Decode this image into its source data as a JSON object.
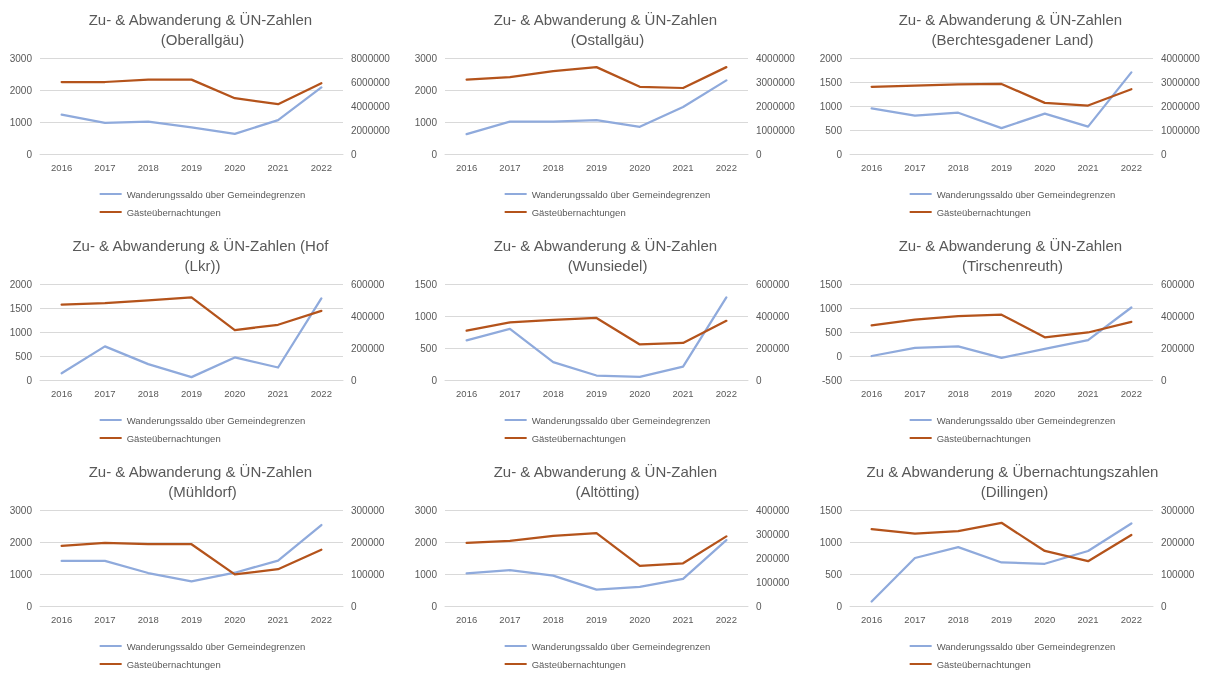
{
  "chart_data": [
    {
      "type": "line",
      "title": "Zu- & Abwanderung & ÜN-Zahlen (Oberallgäu)",
      "categories": [
        "2016",
        "2017",
        "2018",
        "2019",
        "2020",
        "2021",
        "2022"
      ],
      "ylim": [
        0,
        3000
      ],
      "yticks": [
        0,
        1000,
        2000,
        3000
      ],
      "y2lim": [
        0,
        8000000
      ],
      "y2ticks": [
        0,
        2000000,
        4000000,
        6000000,
        8000000
      ],
      "grid": "y",
      "legend": "bottom",
      "marker": "none",
      "line_style": "solid",
      "series": [
        {
          "name": "Wanderungssaldo über Gemeindegrenzen",
          "color": "#8faadc",
          "values": [
            1230,
            970,
            1010,
            830,
            630,
            1060,
            2080
          ]
        },
        {
          "name": "Gästeübernachtungen",
          "color": "#b4531b",
          "axis": "y2",
          "values": [
            6000000,
            6000000,
            6200000,
            6200000,
            4650000,
            4150000,
            5900000
          ]
        }
      ]
    },
    {
      "type": "line",
      "title": "Zu- & Abwanderung & ÜN-Zahlen (Ostallgäu)",
      "categories": [
        "2016",
        "2017",
        "2018",
        "2019",
        "2020",
        "2021",
        "2022"
      ],
      "ylim": [
        0,
        3000
      ],
      "yticks": [
        0,
        1000,
        2000,
        3000
      ],
      "y2lim": [
        0,
        4000000
      ],
      "y2ticks": [
        0,
        1000000,
        2000000,
        3000000,
        4000000
      ],
      "grid": "y",
      "legend": "bottom",
      "marker": "none",
      "line_style": "solid",
      "series": [
        {
          "name": "Wanderungssaldo über Gemeindegrenzen",
          "color": "#8faadc",
          "values": [
            620,
            1010,
            1010,
            1060,
            850,
            1470,
            2300
          ]
        },
        {
          "name": "Gästeübernachtungen",
          "color": "#b4531b",
          "axis": "y2",
          "values": [
            3100000,
            3200000,
            3450000,
            3620000,
            2800000,
            2750000,
            3620000
          ]
        }
      ]
    },
    {
      "type": "line",
      "title": "Zu- & Abwanderung & ÜN-Zahlen (Berchtesgadener Land)",
      "categories": [
        "2016",
        "2017",
        "2018",
        "2019",
        "2020",
        "2021",
        "2022"
      ],
      "ylim": [
        0,
        2000
      ],
      "yticks": [
        0,
        500,
        1000,
        1500,
        2000
      ],
      "y2lim": [
        0,
        4000000
      ],
      "y2ticks": [
        0,
        1000000,
        2000000,
        3000000,
        4000000
      ],
      "grid": "y",
      "legend": "bottom",
      "marker": "none",
      "line_style": "solid",
      "series": [
        {
          "name": "Wanderungssaldo über Gemeindegrenzen",
          "color": "#8faadc",
          "values": [
            950,
            800,
            860,
            540,
            840,
            570,
            1700
          ]
        },
        {
          "name": "Gästeübernachtungen",
          "color": "#b4531b",
          "axis": "y2",
          "values": [
            2800000,
            2850000,
            2900000,
            2920000,
            2130000,
            2020000,
            2700000
          ]
        }
      ]
    },
    {
      "type": "line",
      "title": "Zu- & Abwanderung & ÜN-Zahlen (Hof (Lkr))",
      "categories": [
        "2016",
        "2017",
        "2018",
        "2019",
        "2020",
        "2021",
        "2022"
      ],
      "ylim": [
        0,
        2000
      ],
      "yticks": [
        0,
        500,
        1000,
        1500,
        2000
      ],
      "y2lim": [
        0,
        600000
      ],
      "y2ticks": [
        0,
        200000,
        400000,
        600000
      ],
      "grid": "y",
      "legend": "bottom",
      "marker": "none",
      "line_style": "solid",
      "series": [
        {
          "name": "Wanderungssaldo über Gemeindegrenzen",
          "color": "#8faadc",
          "values": [
            140,
            700,
            330,
            60,
            470,
            260,
            1700
          ]
        },
        {
          "name": "Gästeübernachtungen",
          "color": "#b4531b",
          "axis": "y2",
          "values": [
            471000,
            480000,
            498000,
            516000,
            312000,
            345000,
            432000
          ]
        }
      ]
    },
    {
      "type": "line",
      "title": "Zu- & Abwanderung & ÜN-Zahlen (Wunsiedel)",
      "categories": [
        "2016",
        "2017",
        "2018",
        "2019",
        "2020",
        "2021",
        "2022"
      ],
      "ylim": [
        0,
        1500
      ],
      "yticks": [
        0,
        500,
        1000,
        1500
      ],
      "y2lim": [
        0,
        600000
      ],
      "y2ticks": [
        0,
        200000,
        400000,
        600000
      ],
      "grid": "y",
      "legend": "bottom",
      "marker": "none",
      "line_style": "solid",
      "series": [
        {
          "name": "Wanderungssaldo über Gemeindegrenzen",
          "color": "#8faadc",
          "values": [
            620,
            800,
            280,
            70,
            50,
            210,
            1290
          ]
        },
        {
          "name": "Gästeübernachtungen",
          "color": "#b4531b",
          "axis": "y2",
          "values": [
            308000,
            360000,
            376000,
            388000,
            222000,
            232000,
            370000
          ]
        }
      ]
    },
    {
      "type": "line",
      "title": "Zu- & Abwanderung & ÜN-Zahlen (Tirschenreuth)",
      "categories": [
        "2016",
        "2017",
        "2018",
        "2019",
        "2020",
        "2021",
        "2022"
      ],
      "ylim": [
        -500,
        1500
      ],
      "yticks": [
        -500,
        0,
        500,
        1000,
        1500
      ],
      "y2lim": [
        0,
        600000
      ],
      "y2ticks": [
        0,
        200000,
        400000,
        600000
      ],
      "grid": "y",
      "legend": "bottom",
      "marker": "none",
      "line_style": "solid",
      "series": [
        {
          "name": "Wanderungssaldo über Gemeindegrenzen",
          "color": "#8faadc",
          "values": [
            0,
            170,
            200,
            -40,
            150,
            330,
            1010
          ]
        },
        {
          "name": "Gästeübernachtungen",
          "color": "#b4531b",
          "axis": "y2",
          "values": [
            342000,
            378000,
            399000,
            408000,
            267000,
            297000,
            363000
          ]
        }
      ]
    },
    {
      "type": "line",
      "title": "Zu- & Abwanderung & ÜN-Zahlen (Mühldorf)",
      "categories": [
        "2016",
        "2017",
        "2018",
        "2019",
        "2020",
        "2021",
        "2022"
      ],
      "ylim": [
        0,
        3000
      ],
      "yticks": [
        0,
        1000,
        2000,
        3000
      ],
      "y2lim": [
        0,
        300000
      ],
      "y2ticks": [
        0,
        100000,
        200000,
        300000
      ],
      "grid": "y",
      "legend": "bottom",
      "marker": "none",
      "line_style": "solid",
      "series": [
        {
          "name": "Wanderungssaldo über Gemeindegrenzen",
          "color": "#8faadc",
          "values": [
            1410,
            1410,
            1030,
            770,
            1040,
            1420,
            2530
          ]
        },
        {
          "name": "Gästeübernachtungen",
          "color": "#b4531b",
          "axis": "y2",
          "values": [
            188000,
            197000,
            193000,
            193000,
            99000,
            115000,
            176000
          ]
        }
      ]
    },
    {
      "type": "line",
      "title": "Zu- & Abwanderung & ÜN-Zahlen (Altötting)",
      "categories": [
        "2016",
        "2017",
        "2018",
        "2019",
        "2020",
        "2021",
        "2022"
      ],
      "ylim": [
        0,
        3000
      ],
      "yticks": [
        0,
        1000,
        2000,
        3000
      ],
      "y2lim": [
        0,
        400000
      ],
      "y2ticks": [
        0,
        100000,
        200000,
        300000,
        400000
      ],
      "grid": "y",
      "legend": "bottom",
      "marker": "none",
      "line_style": "solid",
      "series": [
        {
          "name": "Wanderungssaldo über Gemeindegrenzen",
          "color": "#8faadc",
          "values": [
            1020,
            1120,
            950,
            510,
            600,
            850,
            2060
          ]
        },
        {
          "name": "Gästeübernachtungen",
          "color": "#b4531b",
          "axis": "y2",
          "values": [
            263000,
            271000,
            292000,
            304000,
            167000,
            178000,
            290000
          ]
        }
      ]
    },
    {
      "type": "line",
      "title": "Zu & Abwanderung & Übernachtungszahlen (Dillingen)",
      "categories": [
        "2016",
        "2017",
        "2018",
        "2019",
        "2020",
        "2021",
        "2022"
      ],
      "ylim": [
        0,
        1500
      ],
      "yticks": [
        0,
        500,
        1000,
        1500
      ],
      "y2lim": [
        0,
        300000
      ],
      "y2ticks": [
        0,
        100000,
        200000,
        300000
      ],
      "grid": "y",
      "legend": "bottom",
      "marker": "none",
      "line_style": "solid",
      "series": [
        {
          "name": "Wanderungssaldo über Gemeindegrenzen",
          "color": "#8faadc",
          "values": [
            70,
            750,
            920,
            680,
            660,
            860,
            1290
          ]
        },
        {
          "name": "Gästeübernachtungen",
          "color": "#b4531b",
          "axis": "y2",
          "values": [
            240000,
            226000,
            234000,
            260000,
            172000,
            140000,
            222000
          ]
        }
      ]
    }
  ]
}
